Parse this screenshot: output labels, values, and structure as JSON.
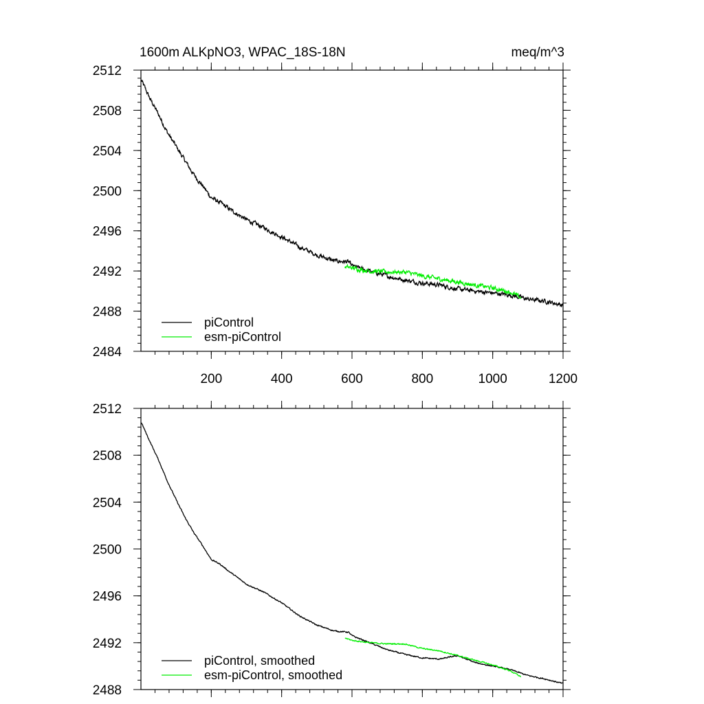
{
  "chart_data": [
    {
      "type": "line",
      "title_left": "1600m ALKpNO3, WPAC_18S-18N",
      "title_right": "meq/m^3",
      "xlabel": "",
      "ylabel": "",
      "xlim": [
        0,
        1200
      ],
      "ylim": [
        2484,
        2512
      ],
      "xticks": [
        200,
        400,
        600,
        800,
        1000,
        1200
      ],
      "yticks": [
        2484,
        2488,
        2492,
        2496,
        2500,
        2504,
        2508,
        2512
      ],
      "series": [
        {
          "name": "piControl",
          "color": "#000000",
          "x": [
            1,
            25,
            50,
            75,
            100,
            125,
            150,
            175,
            200,
            225,
            250,
            300,
            350,
            400,
            450,
            500,
            550,
            590,
            600,
            650,
            700,
            750,
            800,
            850,
            900,
            950,
            1000,
            1050,
            1100,
            1150,
            1200
          ],
          "y": [
            2511.0,
            2509.2,
            2507.6,
            2505.8,
            2504.4,
            2503.0,
            2501.6,
            2500.5,
            2499.3,
            2498.8,
            2498.2,
            2497.1,
            2496.3,
            2495.4,
            2494.4,
            2493.6,
            2493.0,
            2492.9,
            2492.5,
            2492.0,
            2491.5,
            2491.1,
            2490.8,
            2490.6,
            2490.2,
            2490.0,
            2489.8,
            2489.6,
            2489.2,
            2489.0,
            2488.6
          ],
          "noise": 0.32
        },
        {
          "name": "esm-piControl",
          "color": "#00ee00",
          "x": [
            580,
            600,
            650,
            700,
            750,
            800,
            850,
            900,
            950,
            1000,
            1050,
            1080
          ],
          "y": [
            2492.4,
            2492.3,
            2492.0,
            2491.9,
            2491.9,
            2491.5,
            2491.2,
            2490.9,
            2490.6,
            2490.3,
            2489.9,
            2489.3
          ],
          "noise": 0.32
        }
      ],
      "legend": [
        "piControl",
        "esm-piControl"
      ],
      "legend_position": "bottom-left"
    },
    {
      "type": "line",
      "xlabel": "",
      "ylabel": "",
      "xlim": [
        0,
        1200
      ],
      "ylim": [
        2488,
        2512
      ],
      "xticks": [
        200,
        400,
        600,
        800,
        1000,
        1200
      ],
      "yticks": [
        2488,
        2492,
        2496,
        2500,
        2504,
        2508,
        2512
      ],
      "series": [
        {
          "name": "piControl, smoothed",
          "color": "#000000",
          "x": [
            1,
            25,
            50,
            75,
            100,
            125,
            150,
            175,
            200,
            225,
            250,
            300,
            350,
            400,
            450,
            500,
            550,
            590,
            600,
            650,
            700,
            750,
            800,
            850,
            900,
            950,
            1000,
            1050,
            1100,
            1150,
            1200
          ],
          "y": [
            2510.8,
            2509.2,
            2507.6,
            2505.8,
            2504.2,
            2502.7,
            2501.4,
            2500.3,
            2499.1,
            2498.7,
            2498.1,
            2497.0,
            2496.3,
            2495.4,
            2494.3,
            2493.5,
            2493.0,
            2492.9,
            2492.6,
            2492.0,
            2491.4,
            2491.0,
            2490.7,
            2490.6,
            2490.9,
            2490.3,
            2490.0,
            2489.7,
            2489.2,
            2488.9,
            2488.5
          ],
          "noise": 0.08
        },
        {
          "name": "esm-piControl, smoothed",
          "color": "#00ee00",
          "x": [
            580,
            600,
            650,
            700,
            750,
            800,
            850,
            900,
            950,
            1000,
            1050,
            1080
          ],
          "y": [
            2492.4,
            2492.2,
            2492.0,
            2491.9,
            2491.9,
            2491.5,
            2491.3,
            2490.9,
            2490.5,
            2490.1,
            2489.6,
            2489.1
          ],
          "noise": 0.08
        }
      ],
      "legend": [
        "piControl, smoothed",
        "esm-piControl, smoothed"
      ],
      "legend_position": "bottom-left"
    }
  ]
}
